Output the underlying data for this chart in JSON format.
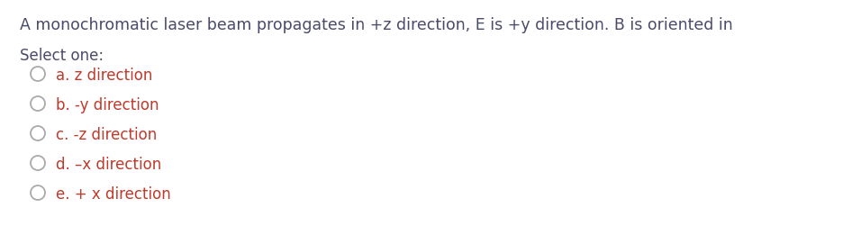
{
  "title": "A monochromatic laser beam propagates in +z direction, E is +y direction. B is oriented in",
  "title_color": "#4a4a6a",
  "select_one_label": "Select one:",
  "select_one_color": "#4a4a6a",
  "options": [
    "a. z direction",
    "b. -y direction",
    "c. -z direction",
    "d. –x direction",
    "e. + x direction"
  ],
  "option_color": "#c0392b",
  "circle_color": "#aaaaaa",
  "bg_color": "#ffffff",
  "title_fontsize": 12.5,
  "select_fontsize": 12.0,
  "option_fontsize": 12.0
}
